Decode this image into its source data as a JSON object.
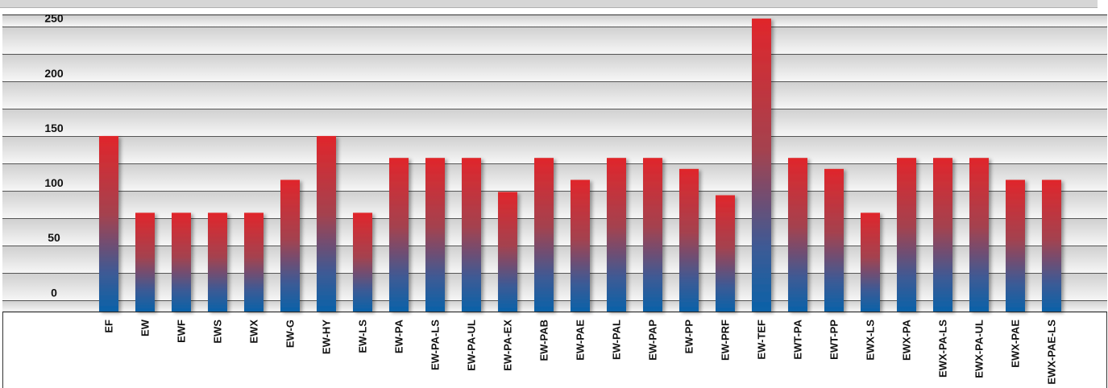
{
  "chart_data": {
    "type": "bar",
    "categories": [
      "EF",
      "EW",
      "EWF",
      "EWS",
      "EWX",
      "EW-G",
      "EW-HY",
      "EW-LS",
      "EW-PA",
      "EW-PA-LS",
      "EW-PA-UL",
      "EW-PA-EX",
      "EW-PAB",
      "EW-PAE",
      "EW-PAL",
      "EW-PAP",
      "EW-PP",
      "EW-PRF",
      "EW-TEF",
      "EWT-PA",
      "EWT-PP",
      "EWX-LS",
      "EWX-PA",
      "EWX-PA-LS",
      "EWX-PA-UL",
      "EWX-PAE",
      "EWX-PAE-LS"
    ],
    "values": [
      150,
      80,
      80,
      80,
      80,
      110,
      150,
      80,
      130,
      130,
      130,
      99,
      130,
      110,
      130,
      130,
      120,
      96,
      257,
      130,
      120,
      80,
      130,
      130,
      130,
      110,
      110
    ],
    "ylim": [
      -10,
      260
    ],
    "yticks": [
      0,
      50,
      100,
      150,
      200,
      250
    ],
    "grid": true,
    "title": "",
    "xlabel": "",
    "ylabel": "",
    "colors": {
      "bar_top": "#e0262b",
      "bar_bottom": "#0a62a8",
      "plot_band_dark": "#cfcfcf",
      "plot_band_light": "#f4f4f4",
      "gridline": "#555555"
    }
  }
}
